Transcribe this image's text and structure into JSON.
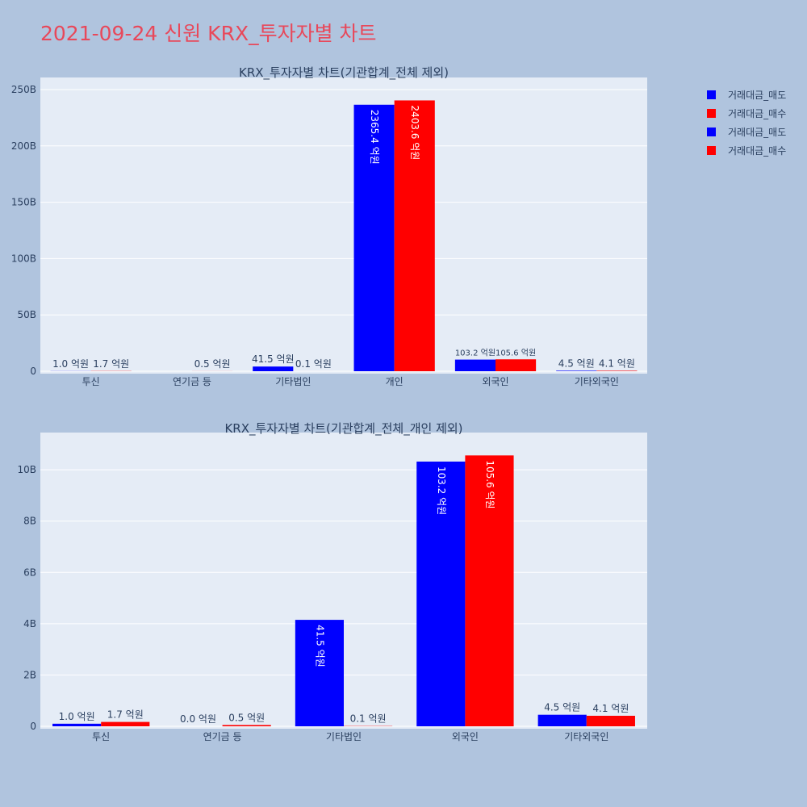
{
  "title": "2021-09-24 신원 KRX_투자자별 차트",
  "colors": {
    "background": "#b0c4de",
    "plot_bg": "#e5ecf6",
    "title": "#e8485a",
    "sell": "#0000ff",
    "buy": "#ff0000"
  },
  "legend": [
    {
      "label": "거래대금_매도",
      "color": "#0000ff"
    },
    {
      "label": "거래대금_매수",
      "color": "#ff0000"
    },
    {
      "label": "거래대금_매도",
      "color": "#0000ff"
    },
    {
      "label": "거래대금_매수",
      "color": "#ff0000"
    }
  ],
  "chart_data": [
    {
      "type": "bar",
      "title": "KRX_투자자별 차트(기관합계_전체 제외)",
      "categories": [
        "투신",
        "연기금 등",
        "기타법인",
        "개인",
        "외국인",
        "기타외국인"
      ],
      "series": [
        {
          "name": "거래대금_매도",
          "color": "#0000ff",
          "values": [
            0.1,
            0,
            4.15,
            236.54,
            10.32,
            0.45
          ],
          "labels": [
            "1.0 억원",
            "",
            "41.5 억원",
            "2365.4 억원",
            "103.2 억원",
            "4.5 억원"
          ]
        },
        {
          "name": "거래대금_매수",
          "color": "#ff0000",
          "values": [
            0.17,
            0.05,
            0.01,
            240.36,
            10.56,
            0.41
          ],
          "labels": [
            "1.7 억원",
            "0.5 억원",
            "0.1 억원",
            "2403.6 억원",
            "105.6 억원",
            "4.1 억원"
          ]
        }
      ],
      "ylim": [
        0,
        255
      ],
      "yticks": [
        0,
        50,
        100,
        150,
        200,
        250
      ],
      "ytick_labels": [
        "0",
        "50B",
        "100B",
        "150B",
        "200B",
        "250B"
      ],
      "grid": true,
      "legend_position": "right"
    },
    {
      "type": "bar",
      "title": "KRX_투자자별 차트(기관합계_전체_개인 제외)",
      "categories": [
        "투신",
        "연기금 등",
        "기타법인",
        "외국인",
        "기타외국인"
      ],
      "series": [
        {
          "name": "거래대금_매도",
          "color": "#0000ff",
          "values": [
            0.1,
            0.0,
            4.15,
            10.32,
            0.45
          ],
          "labels": [
            "1.0 억원",
            "0.0 억원",
            "41.5 억원",
            "103.2 억원",
            "4.5 억원"
          ]
        },
        {
          "name": "거래대금_매수",
          "color": "#ff0000",
          "values": [
            0.17,
            0.05,
            0.01,
            10.56,
            0.41
          ],
          "labels": [
            "1.7 억원",
            "0.5 억원",
            "0.1 억원",
            "105.6 억원",
            "4.1 억원"
          ]
        }
      ],
      "ylim": [
        0,
        11.2
      ],
      "yticks": [
        0,
        2,
        4,
        6,
        8,
        10
      ],
      "ytick_labels": [
        "0",
        "2B",
        "4B",
        "6B",
        "8B",
        "10B"
      ],
      "grid": true,
      "legend_position": "right"
    }
  ]
}
